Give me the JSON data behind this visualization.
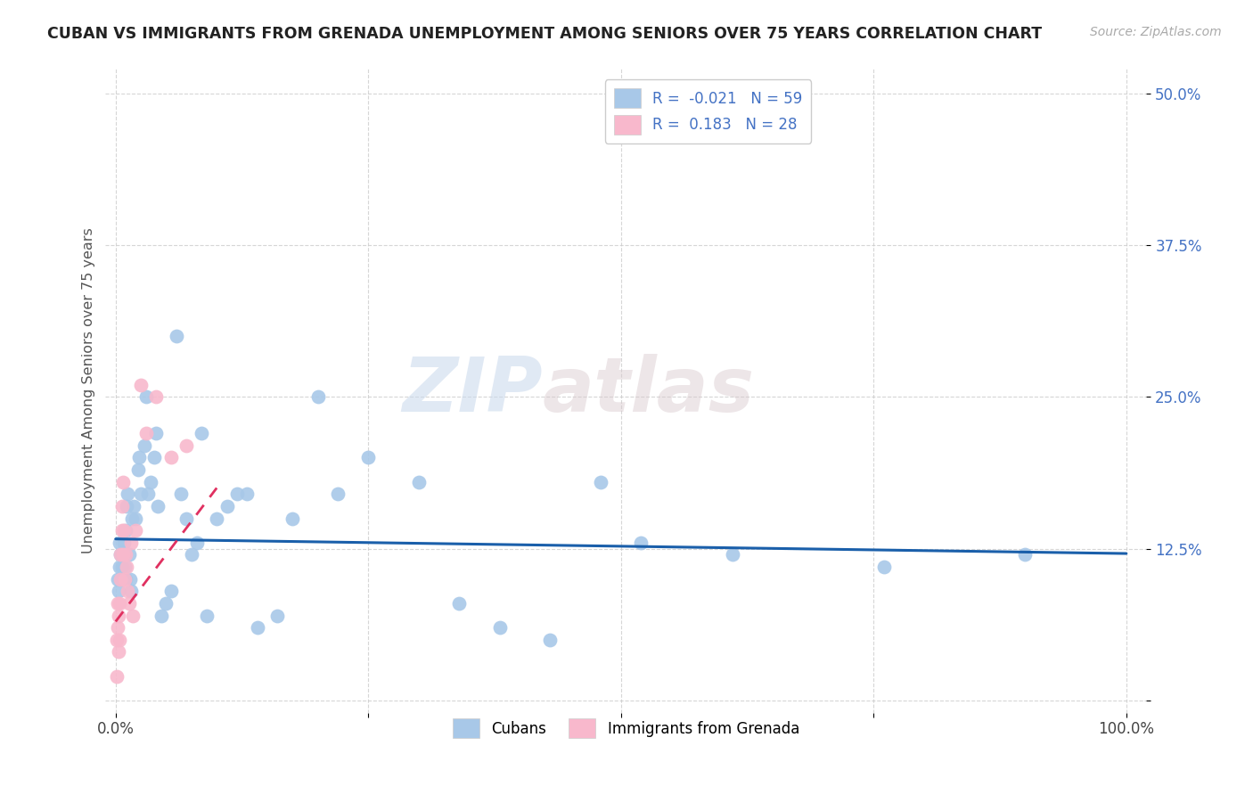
{
  "title": "CUBAN VS IMMIGRANTS FROM GRENADA UNEMPLOYMENT AMONG SENIORS OVER 75 YEARS CORRELATION CHART",
  "source": "Source: ZipAtlas.com",
  "ylabel": "Unemployment Among Seniors over 75 years",
  "xlim": [
    -0.01,
    1.02
  ],
  "ylim": [
    -0.01,
    0.52
  ],
  "xticks": [
    0.0,
    0.25,
    0.5,
    0.75,
    1.0
  ],
  "xticklabels": [
    "0.0%",
    "",
    "",
    "",
    "100.0%"
  ],
  "yticks": [
    0.0,
    0.125,
    0.25,
    0.375,
    0.5
  ],
  "yticklabels": [
    "",
    "12.5%",
    "25.0%",
    "37.5%",
    "50.0%"
  ],
  "R_cubans": -0.021,
  "N_cubans": 59,
  "R_grenada": 0.183,
  "N_grenada": 28,
  "color_cubans": "#a8c8e8",
  "color_grenada": "#f8b8cc",
  "line_color_cubans": "#1a5faa",
  "line_color_grenada": "#e03060",
  "watermark_zip": "ZIP",
  "watermark_atlas": "atlas",
  "legend_cubans": "Cubans",
  "legend_grenada": "Immigrants from Grenada",
  "cubans_x": [
    0.002,
    0.003,
    0.004,
    0.004,
    0.005,
    0.005,
    0.006,
    0.007,
    0.008,
    0.009,
    0.01,
    0.01,
    0.011,
    0.012,
    0.013,
    0.014,
    0.015,
    0.016,
    0.018,
    0.02,
    0.022,
    0.023,
    0.025,
    0.028,
    0.03,
    0.032,
    0.035,
    0.038,
    0.04,
    0.042,
    0.045,
    0.05,
    0.055,
    0.06,
    0.065,
    0.07,
    0.075,
    0.08,
    0.085,
    0.09,
    0.1,
    0.11,
    0.12,
    0.13,
    0.14,
    0.16,
    0.175,
    0.2,
    0.22,
    0.25,
    0.3,
    0.34,
    0.38,
    0.43,
    0.48,
    0.52,
    0.61,
    0.76,
    0.9
  ],
  "cubans_y": [
    0.1,
    0.09,
    0.11,
    0.13,
    0.1,
    0.12,
    0.11,
    0.12,
    0.13,
    0.11,
    0.14,
    0.1,
    0.16,
    0.17,
    0.12,
    0.1,
    0.09,
    0.15,
    0.16,
    0.15,
    0.19,
    0.2,
    0.17,
    0.21,
    0.25,
    0.17,
    0.18,
    0.2,
    0.22,
    0.16,
    0.07,
    0.08,
    0.09,
    0.3,
    0.17,
    0.15,
    0.12,
    0.13,
    0.22,
    0.07,
    0.15,
    0.16,
    0.17,
    0.17,
    0.06,
    0.07,
    0.15,
    0.25,
    0.17,
    0.2,
    0.18,
    0.08,
    0.06,
    0.05,
    0.18,
    0.13,
    0.12,
    0.11,
    0.12
  ],
  "grenada_x": [
    0.001,
    0.001,
    0.002,
    0.002,
    0.003,
    0.003,
    0.004,
    0.004,
    0.005,
    0.005,
    0.006,
    0.006,
    0.007,
    0.007,
    0.008,
    0.009,
    0.01,
    0.011,
    0.012,
    0.013,
    0.015,
    0.017,
    0.02,
    0.025,
    0.03,
    0.04,
    0.055,
    0.07
  ],
  "grenada_y": [
    0.02,
    0.05,
    0.06,
    0.08,
    0.04,
    0.07,
    0.05,
    0.08,
    0.1,
    0.12,
    0.14,
    0.16,
    0.12,
    0.18,
    0.14,
    0.1,
    0.12,
    0.11,
    0.09,
    0.08,
    0.13,
    0.07,
    0.14,
    0.26,
    0.22,
    0.25,
    0.2,
    0.21
  ],
  "cubans_regline_x": [
    0.0,
    1.0
  ],
  "cubans_regline_y": [
    0.133,
    0.121
  ],
  "grenada_regline_x": [
    0.0,
    0.1
  ],
  "grenada_regline_y": [
    0.065,
    0.175
  ]
}
